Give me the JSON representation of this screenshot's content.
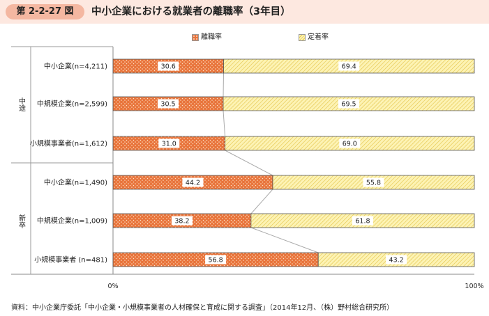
{
  "header": {
    "figure_number": "第 2-2-27 図",
    "title": "中小企業における就業者の離職率（3年目）"
  },
  "legend": {
    "items": [
      {
        "label": "離職率",
        "color": "#e8743b"
      },
      {
        "label": "定着率",
        "color": "#fdf3b4"
      }
    ]
  },
  "source_note": "資料：中小企業庁委託「中小企業・小規模事業者の人材確保と育成に関する調査」（2014年12月、（株）野村総合研究所）",
  "chart_data": {
    "type": "bar",
    "orientation": "horizontal",
    "stacked": true,
    "percent": true,
    "xlim": [
      0,
      100
    ],
    "x_tick_labels": [
      "0%",
      "100%"
    ],
    "groups": [
      {
        "label": "中途",
        "categories": [
          "中小企業(n=4,211)",
          "中規模企業(n=2,599)",
          "小規模事業者(n=1,612)"
        ]
      },
      {
        "label": "新卒",
        "categories": [
          "中小企業(n=1,490)",
          "中規模企業(n=1,009)",
          "小規模事業者 (n=481)"
        ]
      }
    ],
    "categories": [
      "中小企業(n=4,211)",
      "中規模企業(n=2,599)",
      "小規模事業者(n=1,612)",
      "中小企業(n=1,490)",
      "中規模企業(n=1,009)",
      "小規模事業者 (n=481)"
    ],
    "series": [
      {
        "name": "離職率",
        "color": "#e8743b",
        "values": [
          30.6,
          30.5,
          31.0,
          44.2,
          38.2,
          56.8
        ]
      },
      {
        "name": "定着率",
        "color": "#fdf3b4",
        "values": [
          69.4,
          69.5,
          69.0,
          55.8,
          61.8,
          43.2
        ]
      }
    ],
    "value_labels": [
      [
        "30.6",
        "30.5",
        "31.0",
        "44.2",
        "38.2",
        "56.8"
      ],
      [
        "69.4",
        "69.5",
        "69.0",
        "55.8",
        "61.8",
        "43.2"
      ]
    ],
    "connector_lines": true,
    "grid": false,
    "legend_position": "top"
  }
}
